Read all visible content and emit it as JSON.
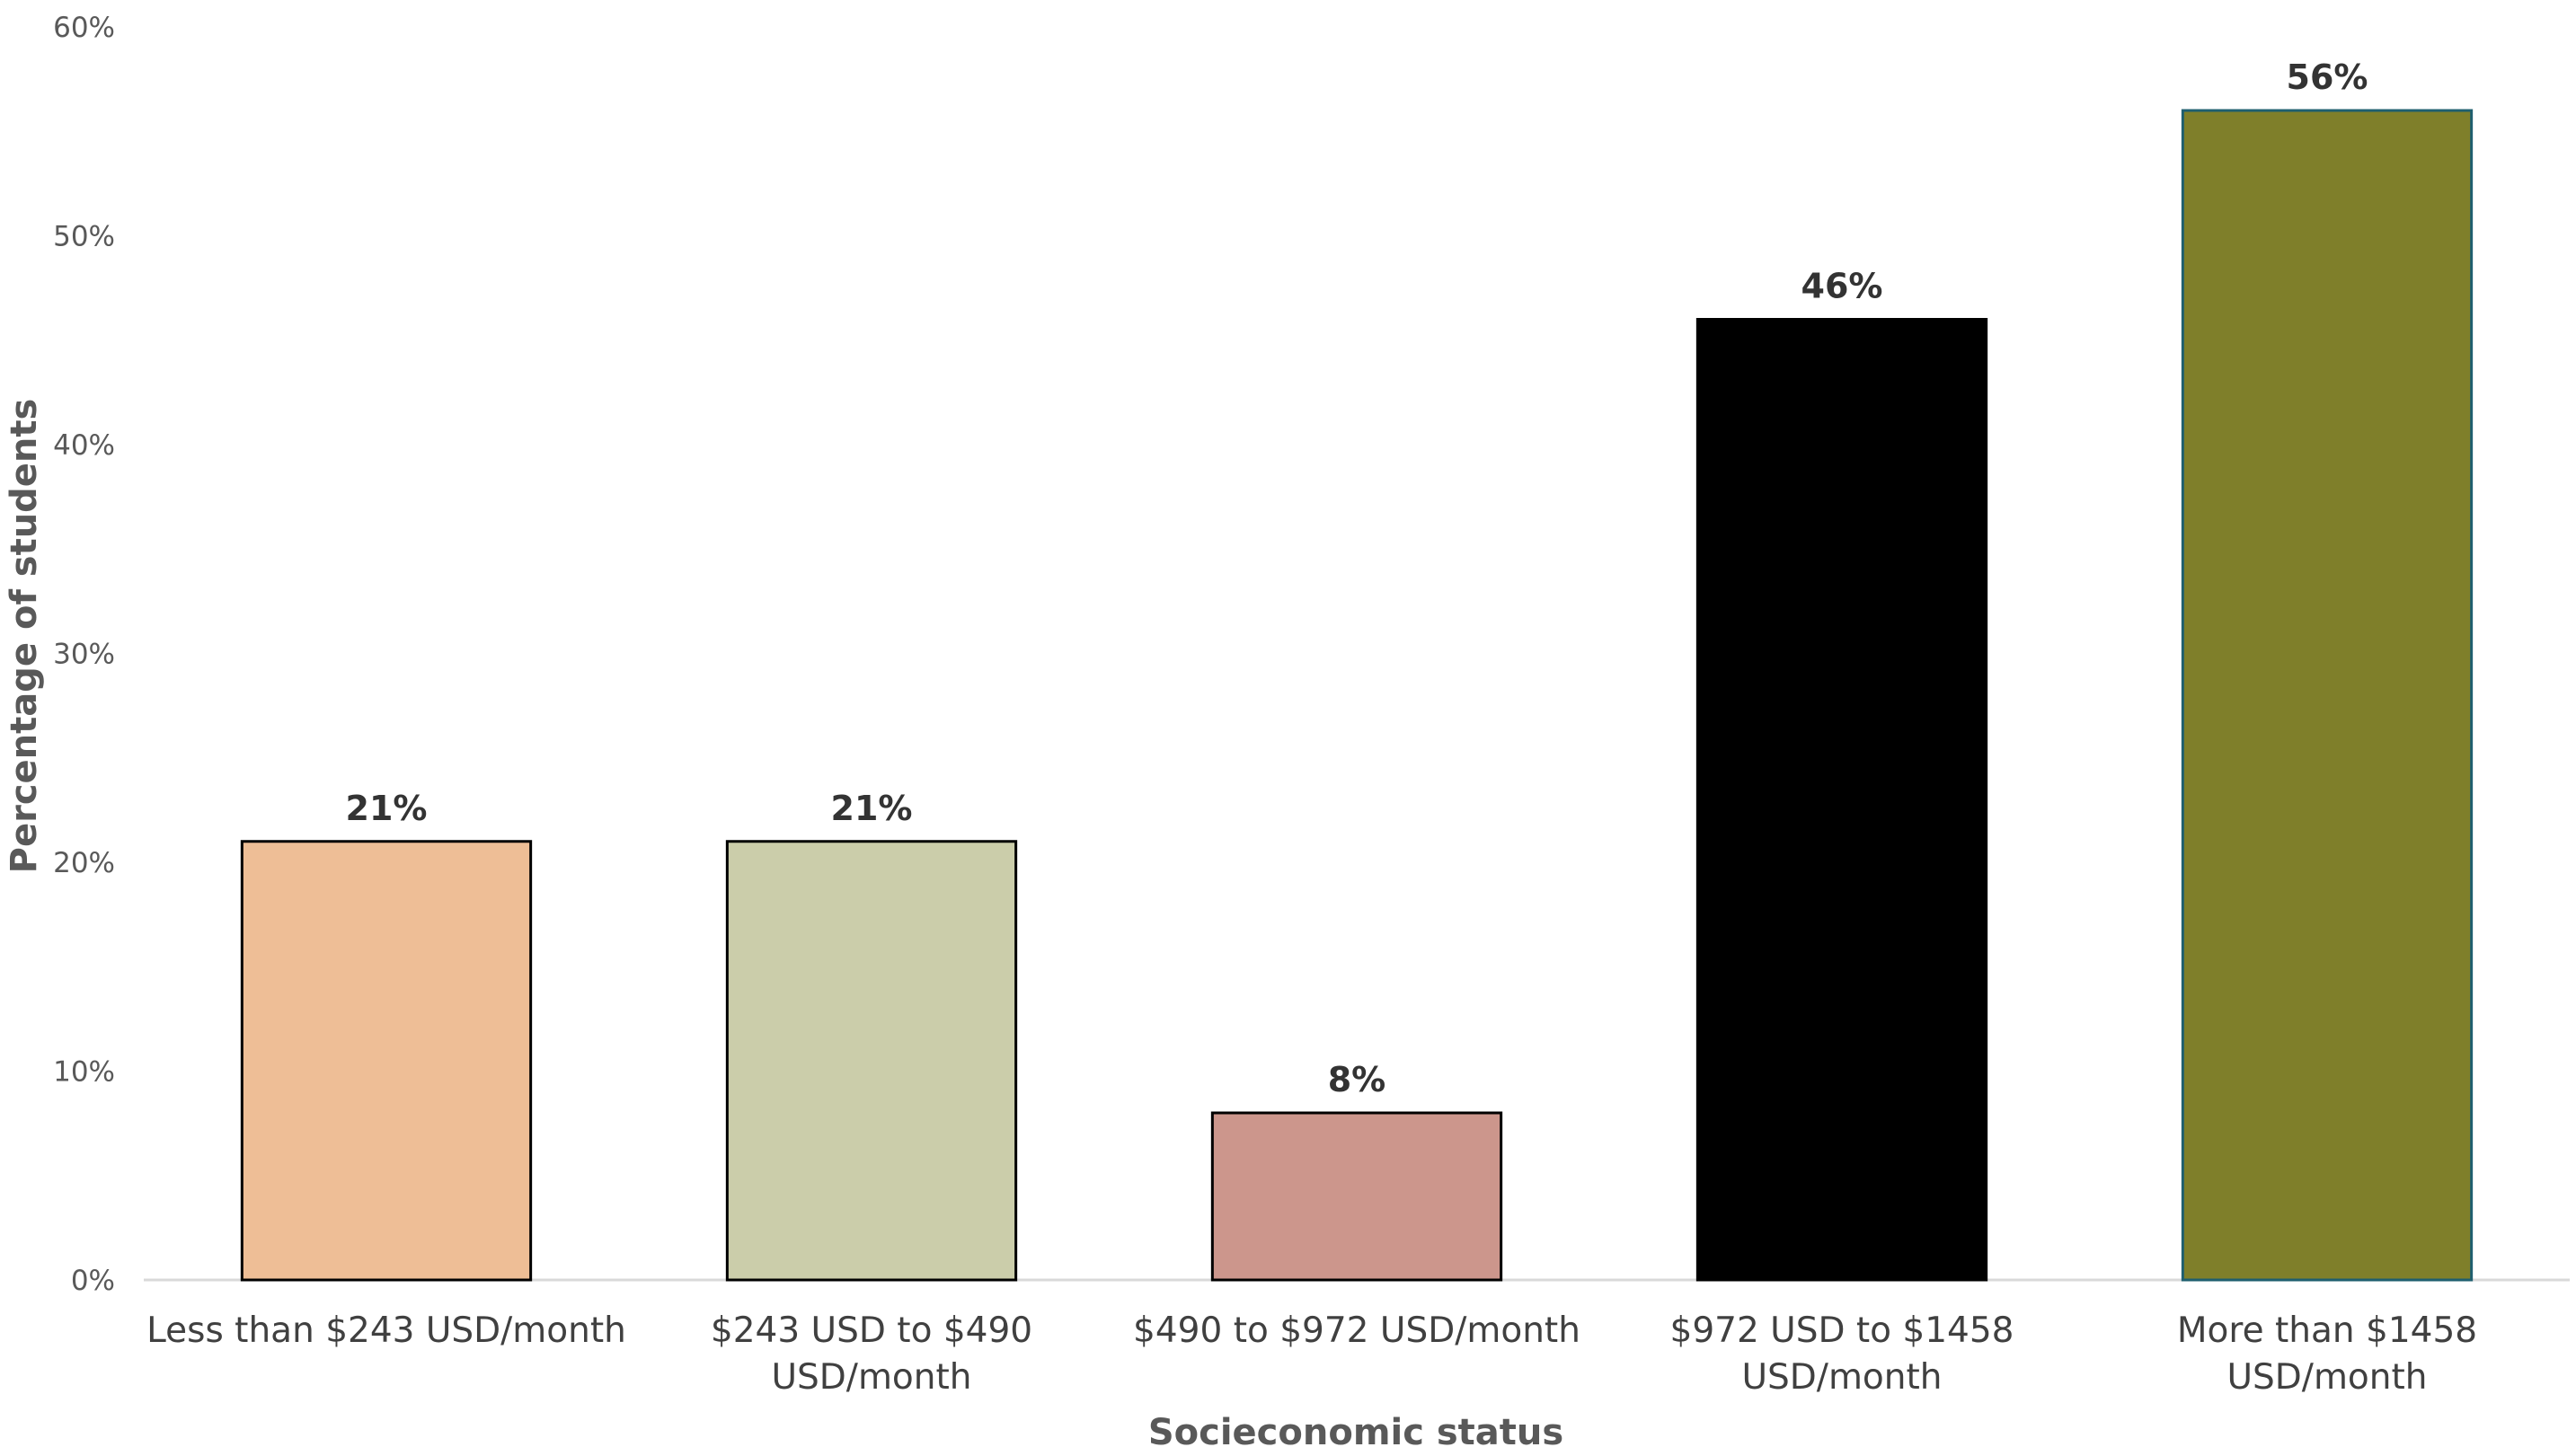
{
  "chart_data": {
    "type": "bar",
    "title": "",
    "xlabel": "Socieconomic status",
    "ylabel": "Percentage of students",
    "ylim": [
      0,
      60
    ],
    "yticks": [
      "0%",
      "10%",
      "20%",
      "30%",
      "40%",
      "50%",
      "60%"
    ],
    "categories": [
      [
        "Less than $243 USD/month"
      ],
      [
        "$243 USD to $490",
        "USD/month"
      ],
      [
        "$490 to $972 USD/month"
      ],
      [
        "$972 USD to $1458",
        "USD/month"
      ],
      [
        "More than $1458",
        "USD/month"
      ]
    ],
    "values": [
      21,
      21,
      8,
      46,
      56
    ],
    "data_labels": [
      "21%",
      "21%",
      "8%",
      "46%",
      "56%"
    ],
    "colors": [
      "#EEBE96",
      "#CBCDAA",
      "#CC968C",
      "#000000",
      "#7F7F2A"
    ],
    "outline_colors": [
      "#000000",
      "#000000",
      "#000000",
      "#000000",
      "#1F5F6F"
    ],
    "grid": false,
    "legend": "none"
  }
}
